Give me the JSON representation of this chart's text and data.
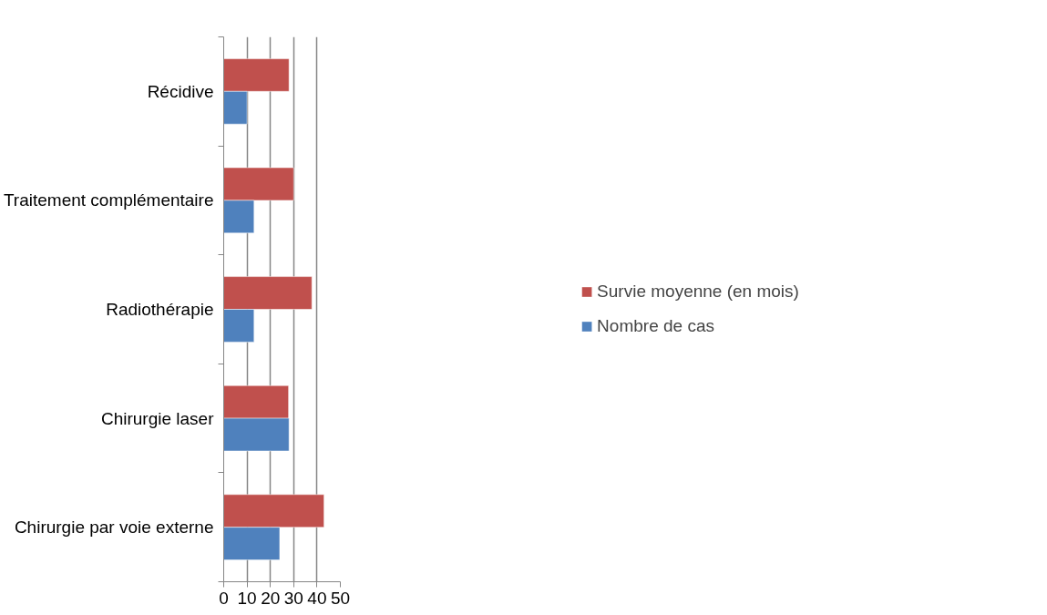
{
  "chart_data": {
    "type": "bar",
    "orientation": "horizontal",
    "categories": [
      "Récidive",
      "Traitement complémentaire",
      "Radiothérapie",
      "Chirurgie laser",
      "Chirurgie par voie externe"
    ],
    "series": [
      {
        "name": "Survie moyenne (en mois)",
        "color": "#c0504d",
        "values": [
          28,
          30,
          37.8,
          27.8,
          43
        ]
      },
      {
        "name": "Nombre de cas",
        "color": "#4f81bd",
        "values": [
          10,
          13,
          13,
          28,
          24
        ]
      }
    ],
    "xlim": [
      0,
      50
    ],
    "xticks": [
      0,
      10,
      20,
      30,
      40,
      50
    ],
    "grid": "x",
    "legend": "right"
  }
}
